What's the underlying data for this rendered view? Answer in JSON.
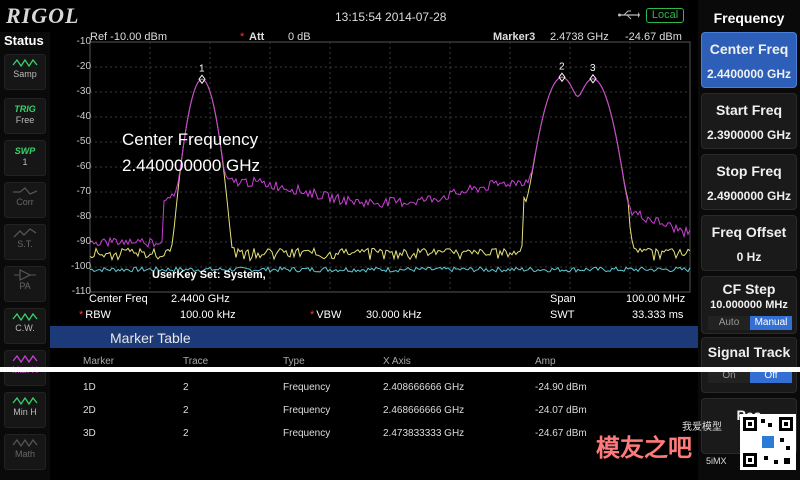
{
  "topbar": {
    "logo": "RIGOL",
    "datetime": "13:15:54  2014-07-28",
    "local_badge": "Local"
  },
  "status": {
    "title": "Status",
    "buttons": [
      {
        "name": "sweep-mode",
        "label": "Samp"
      },
      {
        "name": "trig",
        "label_top": "TRIG",
        "label": "Free"
      },
      {
        "name": "swp",
        "label_top": "SWP",
        "label": "1"
      },
      {
        "name": "corr",
        "label": "Corr"
      },
      {
        "name": "st",
        "label": "S.T."
      },
      {
        "name": "pa",
        "label": "PA"
      },
      {
        "name": "cw",
        "label": "C.W."
      },
      {
        "name": "maxh",
        "label": "Max H"
      },
      {
        "name": "minh",
        "label": "Min H"
      },
      {
        "name": "math",
        "label": "Math"
      }
    ]
  },
  "plot": {
    "ref": "Ref -10.00 dBm",
    "att_label": "Att",
    "att_value": "0 dB",
    "marker_readout": "Marker3",
    "marker_freq": "2.4738 GHz",
    "marker_amp": "-24.67 dBm",
    "scale": [
      "-10",
      "-20",
      "-30",
      "-40",
      "-50",
      "-60",
      "-70",
      "-80",
      "-90",
      "-100",
      "-110"
    ],
    "marker_labels": [
      "1",
      "2",
      "3"
    ],
    "overlay_line1": "Center Frequency",
    "overlay_line2": "2.440000000 GHz",
    "userkey": "UserKey Set:   System,"
  },
  "params": {
    "center_label": "Center Freq",
    "center_value": "2.4400 GHz",
    "span_label": "Span",
    "span_value": "100.00 MHz",
    "rbw_label": "RBW",
    "rbw_value": "100.00 kHz",
    "vbw_label": "VBW",
    "vbw_value": "30.000 kHz",
    "swt_label": "SWT",
    "swt_value": "33.333 ms"
  },
  "marker_table": {
    "title": "Marker Table",
    "columns": [
      "Marker",
      "Trace",
      "Type",
      "X Axis",
      "Amp"
    ],
    "rows": [
      [
        "1D",
        "2",
        "Frequency",
        "2.408666666 GHz",
        "-24.90 dBm"
      ],
      [
        "2D",
        "2",
        "Frequency",
        "2.468666666 GHz",
        "-24.07 dBm"
      ],
      [
        "3D",
        "2",
        "Frequency",
        "2.473833333 GHz",
        "-24.67 dBm"
      ]
    ]
  },
  "menu": {
    "title": "Frequency",
    "items": [
      {
        "label": "Center Freq",
        "value": "2.4400000 GHz",
        "active": true
      },
      {
        "label": "Start Freq",
        "value": "2.3900000 GHz"
      },
      {
        "label": "Stop Freq",
        "value": "2.4900000 GHz"
      },
      {
        "label": "Freq Offset",
        "value": "0 Hz"
      },
      {
        "label": "CF Step",
        "value": "10.000000 MHz",
        "toggle": [
          "Auto",
          "Manual"
        ]
      },
      {
        "label": "Signal Track",
        "toggle": [
          "On",
          "Off"
        ]
      },
      {
        "label": "Pea"
      }
    ]
  },
  "watermark": {
    "text": "模友之吧",
    "small": "我爱模型",
    "small2": "5iMX"
  },
  "colors": {
    "accent": "#2d5fb8",
    "trace_magenta": "#c93fd6",
    "trace_yellow": "#e6e27a",
    "trace_cyan": "#5fc9d4",
    "marker_red": "#ff3333",
    "local_green": "#2db84a"
  }
}
